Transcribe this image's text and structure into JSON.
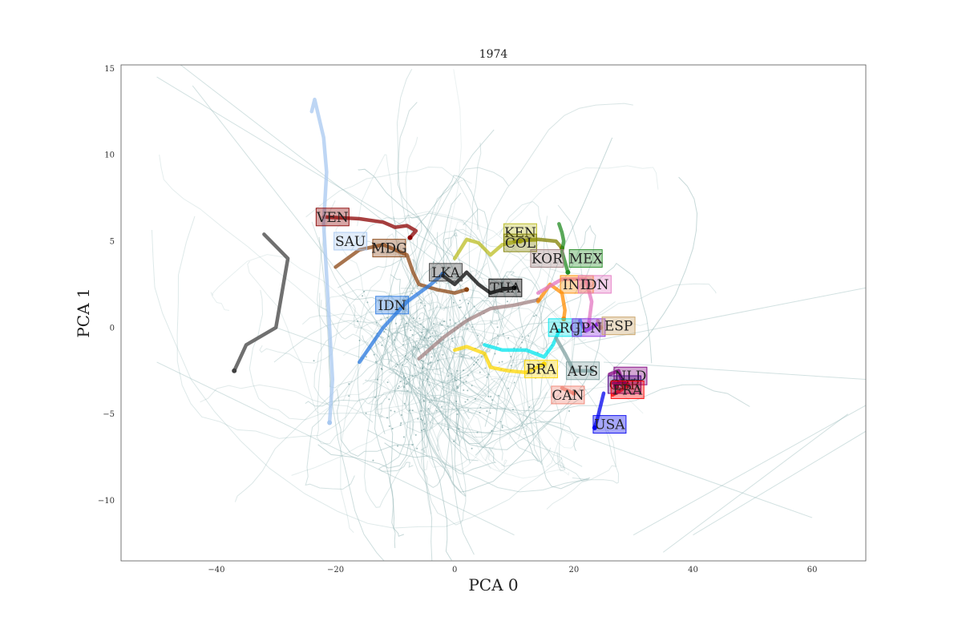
{
  "chart_data": {
    "type": "line",
    "title": "1974",
    "xlabel": "PCA 0",
    "ylabel": "PCA 1",
    "xlim": [
      -56,
      69
    ],
    "ylim": [
      -13.5,
      15.2
    ],
    "x_ticks": [
      -40,
      -20,
      0,
      20,
      40,
      60
    ],
    "y_ticks": [
      -10,
      -5,
      0,
      5,
      10,
      15
    ],
    "x_tick_labels": [
      "−40",
      "−20",
      "0",
      "20",
      "40",
      "60"
    ],
    "y_tick_labels": [
      "−10",
      "−5",
      "0",
      "5",
      "10",
      "15"
    ],
    "grid": false,
    "legend": "none",
    "background_color": "#8fb3b3",
    "series": [
      {
        "label": "VEN",
        "color": "#8b0000",
        "label_at": [
          -20.5,
          6.4
        ],
        "points": [
          [
            -22,
            6.4
          ],
          [
            -16,
            6.3
          ],
          [
            -12,
            6.1
          ],
          [
            -10,
            5.8
          ],
          [
            -8,
            5.9
          ],
          [
            -6.5,
            5.6
          ],
          [
            -7.5,
            5.2
          ]
        ]
      },
      {
        "label": "SAU",
        "color": "#a8c8f0",
        "label_at": [
          -17.5,
          5.0
        ],
        "points": [
          [
            -24,
            12.5
          ],
          [
            -23.5,
            13.2
          ],
          [
            -22,
            11
          ],
          [
            -21.5,
            9
          ],
          [
            -22,
            6
          ],
          [
            -21.5,
            3
          ],
          [
            -21,
            0
          ],
          [
            -20.5,
            -3
          ],
          [
            -21,
            -5.5
          ]
        ]
      },
      {
        "label": "MDG",
        "color": "#8b4513",
        "label_at": [
          -11,
          4.6
        ],
        "points": [
          [
            -20,
            3.5
          ],
          [
            -16,
            4.5
          ],
          [
            -12,
            4.8
          ],
          [
            -8,
            4.2
          ],
          [
            -7,
            3.2
          ],
          [
            -6,
            2.5
          ],
          [
            -3,
            2.2
          ],
          [
            0,
            2.0
          ],
          [
            2,
            2.2
          ]
        ]
      },
      {
        "label": "IDN",
        "color": "#2878e0",
        "label_at": [
          -10.5,
          1.3
        ],
        "points": [
          [
            -16,
            -2
          ],
          [
            -12,
            0
          ],
          [
            -8,
            1.5
          ],
          [
            -4,
            2.5
          ],
          [
            -2,
            3.1
          ]
        ]
      },
      {
        "label": "LKA",
        "color": "#404040",
        "label_at": [
          -1.5,
          3.2
        ],
        "points": [
          [
            -32,
            5.4
          ],
          [
            -28,
            4
          ],
          [
            -30,
            0
          ],
          [
            -35,
            -1
          ],
          [
            -37,
            -2.5
          ]
        ]
      },
      {
        "label": "THA",
        "color": "#000000",
        "label_at": [
          8.5,
          2.3
        ],
        "points": [
          [
            -2,
            3.0
          ],
          [
            0,
            2.5
          ],
          [
            2,
            3.2
          ],
          [
            4,
            2.5
          ],
          [
            6,
            2.0
          ],
          [
            8,
            2.2
          ],
          [
            10,
            2.3
          ]
        ]
      },
      {
        "label": "KEN",
        "color": "#bcbd22",
        "label_at": [
          11,
          5.5
        ],
        "points": [
          [
            0,
            4.0
          ],
          [
            2,
            5.1
          ],
          [
            4,
            4.9
          ],
          [
            6,
            4.2
          ],
          [
            8,
            4.8
          ],
          [
            11,
            5.0
          ]
        ]
      },
      {
        "label": "COL",
        "color": "#808000",
        "label_at": [
          11,
          4.9
        ],
        "points": [
          [
            10,
            5.0
          ],
          [
            14,
            5.1
          ],
          [
            17,
            5.0
          ],
          [
            18,
            4.6
          ]
        ]
      },
      {
        "label": "KOR",
        "color": "#a08080",
        "label_at": [
          15.5,
          4.0
        ],
        "points": [
          [
            -6,
            -1.8
          ],
          [
            -2,
            -0.6
          ],
          [
            2,
            0.4
          ],
          [
            6,
            1.1
          ],
          [
            10,
            1.3
          ],
          [
            14,
            1.6
          ]
        ]
      },
      {
        "label": "MEX",
        "color": "#228b22",
        "label_at": [
          22,
          4.0
        ],
        "points": [
          [
            17.5,
            6.0
          ],
          [
            18,
            5.5
          ],
          [
            18.3,
            5.0
          ],
          [
            18,
            4.4
          ],
          [
            18.5,
            3.8
          ],
          [
            19,
            3.2
          ]
        ]
      },
      {
        "label": "IND",
        "color": "#ff8c00",
        "label_at": [
          20.5,
          2.5
        ],
        "points": [
          [
            14,
            1.5
          ],
          [
            16,
            2.5
          ],
          [
            18,
            2.0
          ],
          [
            18.5,
            1.0
          ],
          [
            18.3,
            0.5
          ]
        ]
      },
      {
        "label": "IDN",
        "color": "#e377c2",
        "label_at": [
          23.5,
          2.5
        ],
        "points": [
          [
            14,
            2.0
          ],
          [
            18,
            2.8
          ],
          [
            22,
            2.8
          ],
          [
            23,
            1.5
          ],
          [
            22.5,
            0.2
          ]
        ]
      },
      {
        "label": "ARG",
        "color": "#00e5ee",
        "label_at": [
          18.5,
          0.0
        ],
        "points": [
          [
            5,
            -1.0
          ],
          [
            8,
            -1.3
          ],
          [
            12,
            -1.3
          ],
          [
            15,
            -1.7
          ],
          [
            16.5,
            -1.0
          ],
          [
            17.5,
            -0.2
          ]
        ]
      },
      {
        "label": "JPN",
        "color": "#8a2be2",
        "label_at": [
          22.5,
          0.0
        ],
        "points": [
          [
            21,
            0.4
          ],
          [
            22,
            -0.2
          ],
          [
            23,
            0.0
          ],
          [
            24,
            0.2
          ]
        ]
      },
      {
        "label": "ESP",
        "color": "#c8a060",
        "label_at": [
          27.5,
          0.1
        ],
        "points": [
          [
            24,
            0.4
          ],
          [
            24.5,
            0.0
          ]
        ]
      },
      {
        "label": "BRA",
        "color": "#ffd700",
        "label_at": [
          14.5,
          -2.4
        ],
        "points": [
          [
            0,
            -1.3
          ],
          [
            2,
            -1.1
          ],
          [
            5,
            -1.5
          ],
          [
            6,
            -2.3
          ],
          [
            9,
            -2.5
          ],
          [
            12,
            -2.6
          ],
          [
            15,
            -2.1
          ]
        ]
      },
      {
        "label": "AUS",
        "color": "#7fa0a0",
        "label_at": [
          21.5,
          -2.5
        ],
        "points": [
          [
            17,
            -0.6
          ],
          [
            18.5,
            -1.5
          ],
          [
            20,
            -2.5
          ],
          [
            23,
            -2.5
          ]
        ]
      },
      {
        "label": "CAN",
        "color": "#f08070",
        "label_at": [
          19,
          -3.9
        ],
        "points": [
          [
            18,
            -3.5
          ],
          [
            20,
            -3.8
          ]
        ]
      },
      {
        "label": "NLD",
        "color": "#800080",
        "label_at": [
          29.5,
          -2.8
        ],
        "points": [
          [
            26,
            -2.7
          ],
          [
            27.5,
            -2.5
          ],
          [
            28,
            -3.0
          ],
          [
            27,
            -3.4
          ]
        ]
      },
      {
        "label": "GBR",
        "color": "#4b0082",
        "label_at": [
          28.5,
          -3.3
        ],
        "points": [
          [
            26.5,
            -3.2
          ],
          [
            28.5,
            -3.2
          ]
        ]
      },
      {
        "label": "FRA",
        "color": "#ff0000",
        "label_at": [
          29,
          -3.6
        ],
        "points": [
          [
            26.5,
            -3.9
          ],
          [
            28,
            -3.6
          ],
          [
            29,
            -3.3
          ]
        ]
      },
      {
        "label": "USA",
        "color": "#0000ee",
        "label_at": [
          26,
          -5.6
        ],
        "points": [
          [
            25,
            -3.8
          ],
          [
            24.5,
            -4.5
          ],
          [
            24,
            -5.2
          ],
          [
            23.5,
            -5.8
          ]
        ]
      }
    ]
  }
}
